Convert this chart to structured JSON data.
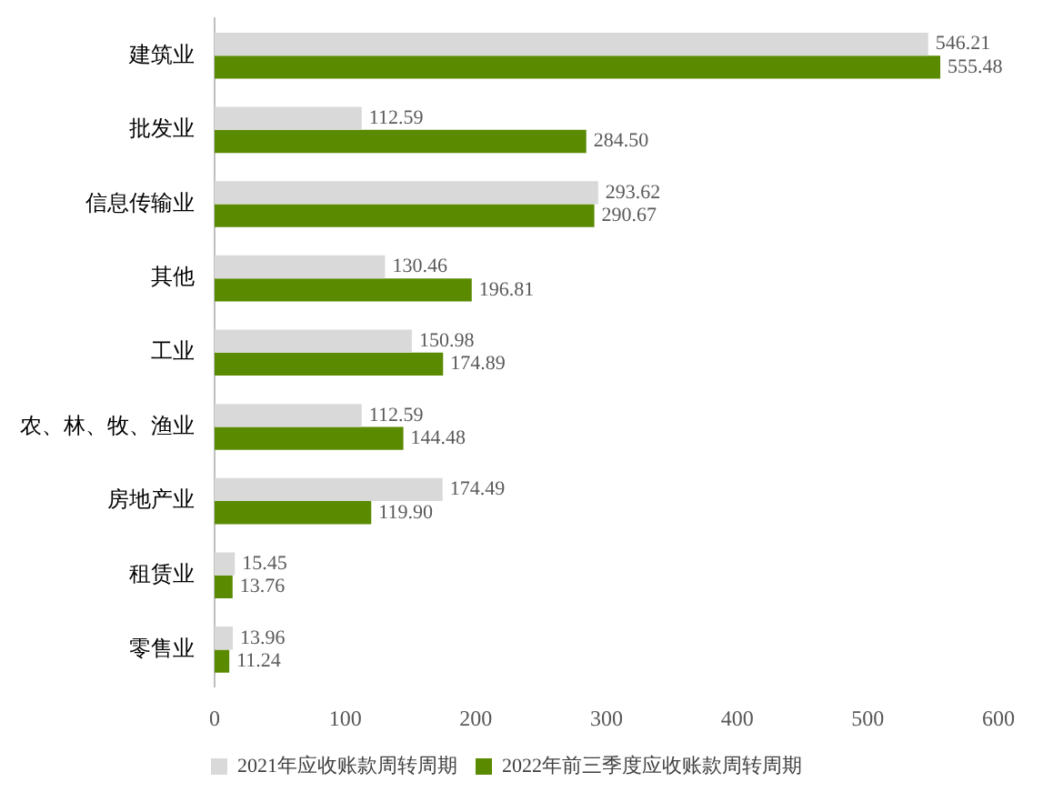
{
  "chart_data": {
    "type": "bar",
    "orientation": "horizontal",
    "categories": [
      "建筑业",
      "批发业",
      "信息传输业",
      "其他",
      "工业",
      "农、林、牧、渔业",
      "房地产业",
      "租赁业",
      "零售业"
    ],
    "series": [
      {
        "name": "2021年应收账款周转周期",
        "color": "#d9d9d9",
        "values": [
          546.21,
          112.59,
          293.62,
          130.46,
          150.98,
          112.59,
          174.49,
          15.45,
          13.96
        ],
        "value_labels": [
          "546.21",
          "112.59",
          "293.62",
          "130.46",
          "150.98",
          "112.59",
          "174.49",
          "15.45",
          "13.96"
        ]
      },
      {
        "name": "2022年前三季度应收账款周转周期",
        "color": "#5a8a00",
        "values": [
          555.48,
          284.5,
          290.67,
          196.81,
          174.89,
          144.48,
          119.9,
          13.76,
          11.24
        ],
        "value_labels": [
          "555.48",
          "284.50",
          "290.67",
          "196.81",
          "174.89",
          "144.48",
          "119.90",
          "13.76",
          "11.24"
        ]
      }
    ],
    "xlim": [
      0,
      600
    ],
    "xticks": [
      0,
      100,
      200,
      300,
      400,
      500,
      600
    ],
    "legend": "bottom",
    "grid": false
  }
}
